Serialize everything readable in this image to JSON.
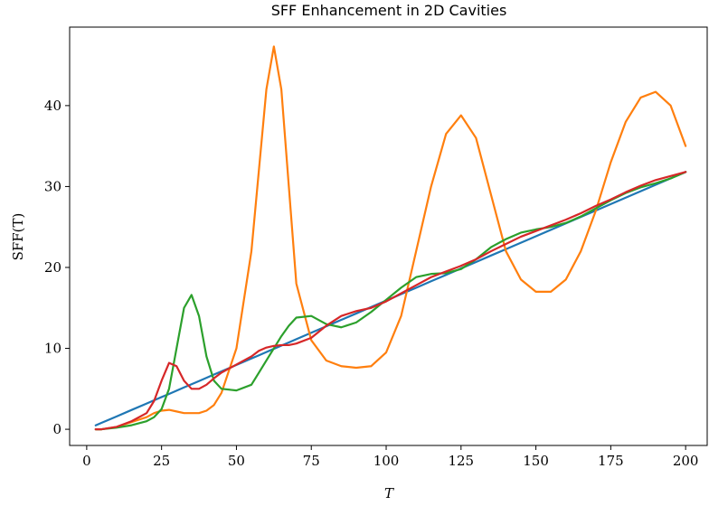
{
  "chart_data": {
    "type": "line",
    "title": "SFF Enhancement in 2D Cavities",
    "xlabel": "T",
    "ylabel": "SFF(T)",
    "x": [
      3,
      5,
      10,
      15,
      20,
      22.5,
      25,
      27.5,
      30,
      32.5,
      35,
      37.5,
      40,
      42.5,
      45,
      50,
      55,
      57.5,
      60,
      62.5,
      65,
      67.5,
      70,
      75,
      80,
      85,
      90,
      95,
      100,
      105,
      110,
      115,
      120,
      125,
      130,
      135,
      140,
      145,
      150,
      155,
      160,
      165,
      170,
      175,
      180,
      185,
      190,
      195,
      200
    ],
    "series": [
      {
        "color": "#1f77b4",
        "values": [
          0.48,
          0.8,
          1.59,
          2.39,
          3.18,
          3.58,
          3.98,
          4.37,
          4.77,
          5.17,
          5.57,
          5.96,
          6.36,
          6.76,
          7.16,
          7.95,
          8.75,
          9.14,
          9.54,
          9.94,
          10.34,
          10.73,
          11.13,
          11.93,
          12.72,
          13.52,
          14.31,
          15.11,
          15.9,
          16.7,
          17.49,
          18.29,
          19.08,
          19.88,
          20.67,
          21.47,
          22.26,
          23.06,
          23.85,
          24.65,
          25.44,
          26.24,
          27.03,
          27.83,
          28.62,
          29.42,
          30.21,
          31.01,
          31.8
        ]
      },
      {
        "color": "#ff7f0e",
        "values": [
          0,
          0,
          0.3,
          0.9,
          1.5,
          2.0,
          2.3,
          2.4,
          2.2,
          2.0,
          2.0,
          2.0,
          2.3,
          3.0,
          4.5,
          10,
          22,
          32,
          42,
          47.3,
          42,
          30,
          18,
          11,
          8.5,
          7.8,
          7.6,
          7.8,
          9.5,
          14,
          22,
          30,
          36.5,
          38.8,
          36,
          29,
          22,
          18.5,
          17,
          17,
          18.5,
          22,
          27,
          33,
          38,
          41,
          41.7,
          40,
          35
        ]
      },
      {
        "color": "#2ca02c",
        "values": [
          0,
          0,
          0.2,
          0.5,
          1.0,
          1.5,
          2.5,
          5,
          10,
          15,
          16.6,
          14,
          9,
          6,
          5,
          4.8,
          5.5,
          7,
          8.5,
          10,
          11.5,
          12.8,
          13.8,
          14,
          13,
          12.6,
          13.2,
          14.5,
          16,
          17.5,
          18.8,
          19.2,
          19.3,
          19.8,
          21,
          22.5,
          23.5,
          24.3,
          24.7,
          25,
          25.5,
          26.3,
          27.3,
          28.3,
          29.2,
          29.9,
          30.4,
          31,
          31.8
        ]
      },
      {
        "color": "#d62728",
        "values": [
          0,
          0,
          0.3,
          1,
          2,
          3.5,
          6,
          8.2,
          7.8,
          6,
          5,
          5,
          5.5,
          6.3,
          7,
          8,
          9,
          9.7,
          10.1,
          10.3,
          10.4,
          10.4,
          10.6,
          11.3,
          12.8,
          14,
          14.6,
          15,
          15.8,
          16.8,
          17.8,
          18.8,
          19.5,
          20.2,
          21,
          22,
          22.9,
          23.8,
          24.5,
          25.2,
          25.9,
          26.7,
          27.6,
          28.4,
          29.3,
          30.1,
          30.8,
          31.3,
          31.8
        ]
      }
    ],
    "xlim": [
      -5.7,
      207.2
    ],
    "ylim": [
      -2.0,
      49.7
    ],
    "xticks": [
      0,
      25,
      50,
      75,
      100,
      125,
      150,
      175,
      200
    ],
    "yticks": [
      0,
      10,
      20,
      30,
      40
    ]
  }
}
